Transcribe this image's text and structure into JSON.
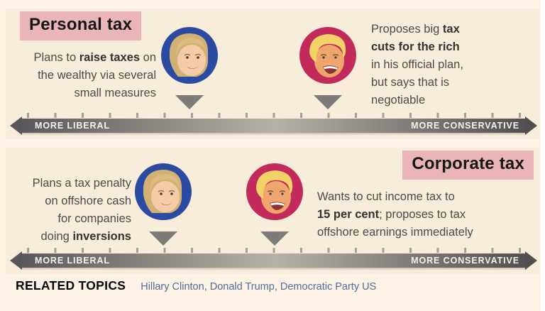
{
  "colors": {
    "page_bg": "#fdf3e4",
    "panel_bg": "#f8ecda",
    "title_bg": "#eab5b9",
    "clinton_ring": "#2b4ba2",
    "trump_ring": "#c22a5b",
    "marker": "#7c7b77",
    "link": "#4f6d9d"
  },
  "panels": [
    {
      "title": "Personal tax",
      "clinton": {
        "person": "Hillary Clinton",
        "position_pct": 34,
        "text": [
          {
            "t": "Plans to "
          },
          {
            "t": "raise taxes",
            "b": true
          },
          {
            "t": " on\nthe wealthy via several\nsmall measures"
          }
        ]
      },
      "trump": {
        "person": "Donald Trump",
        "position_pct": 60,
        "text": [
          {
            "t": "Proposes big "
          },
          {
            "t": "tax\ncuts for the rich",
            "b": true
          },
          {
            "t": "\nin his official plan,\nbut says that is\nnegotiable"
          }
        ]
      },
      "axis": {
        "left": "MORE LIBERAL",
        "right": "MORE CONSERVATIVE"
      }
    },
    {
      "title": "Corporate tax",
      "clinton": {
        "person": "Hillary Clinton",
        "position_pct": 29,
        "text": [
          {
            "t": "Plans a tax penalty\non offshore cash\nfor companies\ndoing "
          },
          {
            "t": "inversions",
            "b": true
          }
        ]
      },
      "trump": {
        "person": "Donald Trump",
        "position_pct": 50,
        "text": [
          {
            "t": "Wants to cut income tax to\n"
          },
          {
            "t": "15 per cent",
            "b": true
          },
          {
            "t": "; proposes to tax\noffshore earnings immediately"
          }
        ]
      },
      "axis": {
        "left": "MORE LIBERAL",
        "right": "MORE CONSERVATIVE"
      }
    }
  ],
  "related": {
    "heading": "RELATED TOPICS",
    "links": [
      "Hillary Clinton",
      "Donald Trump",
      "Democratic Party US"
    ],
    "separator": ", "
  }
}
